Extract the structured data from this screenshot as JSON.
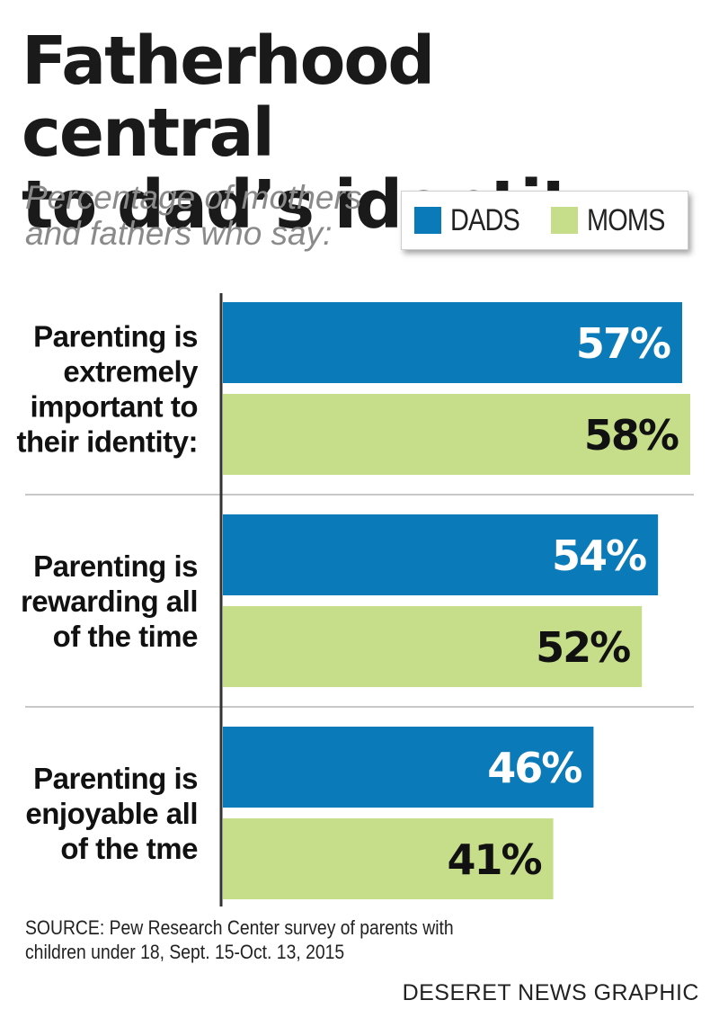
{
  "colors": {
    "dads": "#0a7ab8",
    "moms": "#c6dd8a",
    "axis": "#333333",
    "divider": "#c8c8c8"
  },
  "header": {
    "title_line1": "Fatherhood central",
    "title_line2": "to dad’s identity",
    "subtitle_line1": "Percentage of mothers",
    "subtitle_line2": "and fathers who say:"
  },
  "legend": {
    "dads_label": "DADS",
    "moms_label": "MOMS"
  },
  "chart_data": {
    "type": "bar",
    "orientation": "horizontal",
    "categories": [
      [
        "Parenting is",
        "extremely",
        "important to",
        "their identity:"
      ],
      [
        "Parenting is",
        "rewarding all",
        "of the time"
      ],
      [
        "Parenting is",
        "enjoyable all",
        "of the tme"
      ]
    ],
    "series": [
      {
        "name": "DADS",
        "values": [
          57,
          54,
          46
        ],
        "labels": [
          "57%",
          "54%",
          "46%"
        ]
      },
      {
        "name": "MOMS",
        "values": [
          58,
          52,
          41
        ],
        "labels": [
          "58%",
          "52%",
          "41%"
        ]
      }
    ],
    "xlim": [
      0,
      58
    ],
    "legend_position": "top-right",
    "grid": false
  },
  "footer": {
    "source_line1": "SOURCE: Pew Research Center survey of parents with",
    "source_line2": "children under 18, Sept. 15-Oct. 13, 2015",
    "credit": "DESERET NEWS GRAPHIC"
  }
}
